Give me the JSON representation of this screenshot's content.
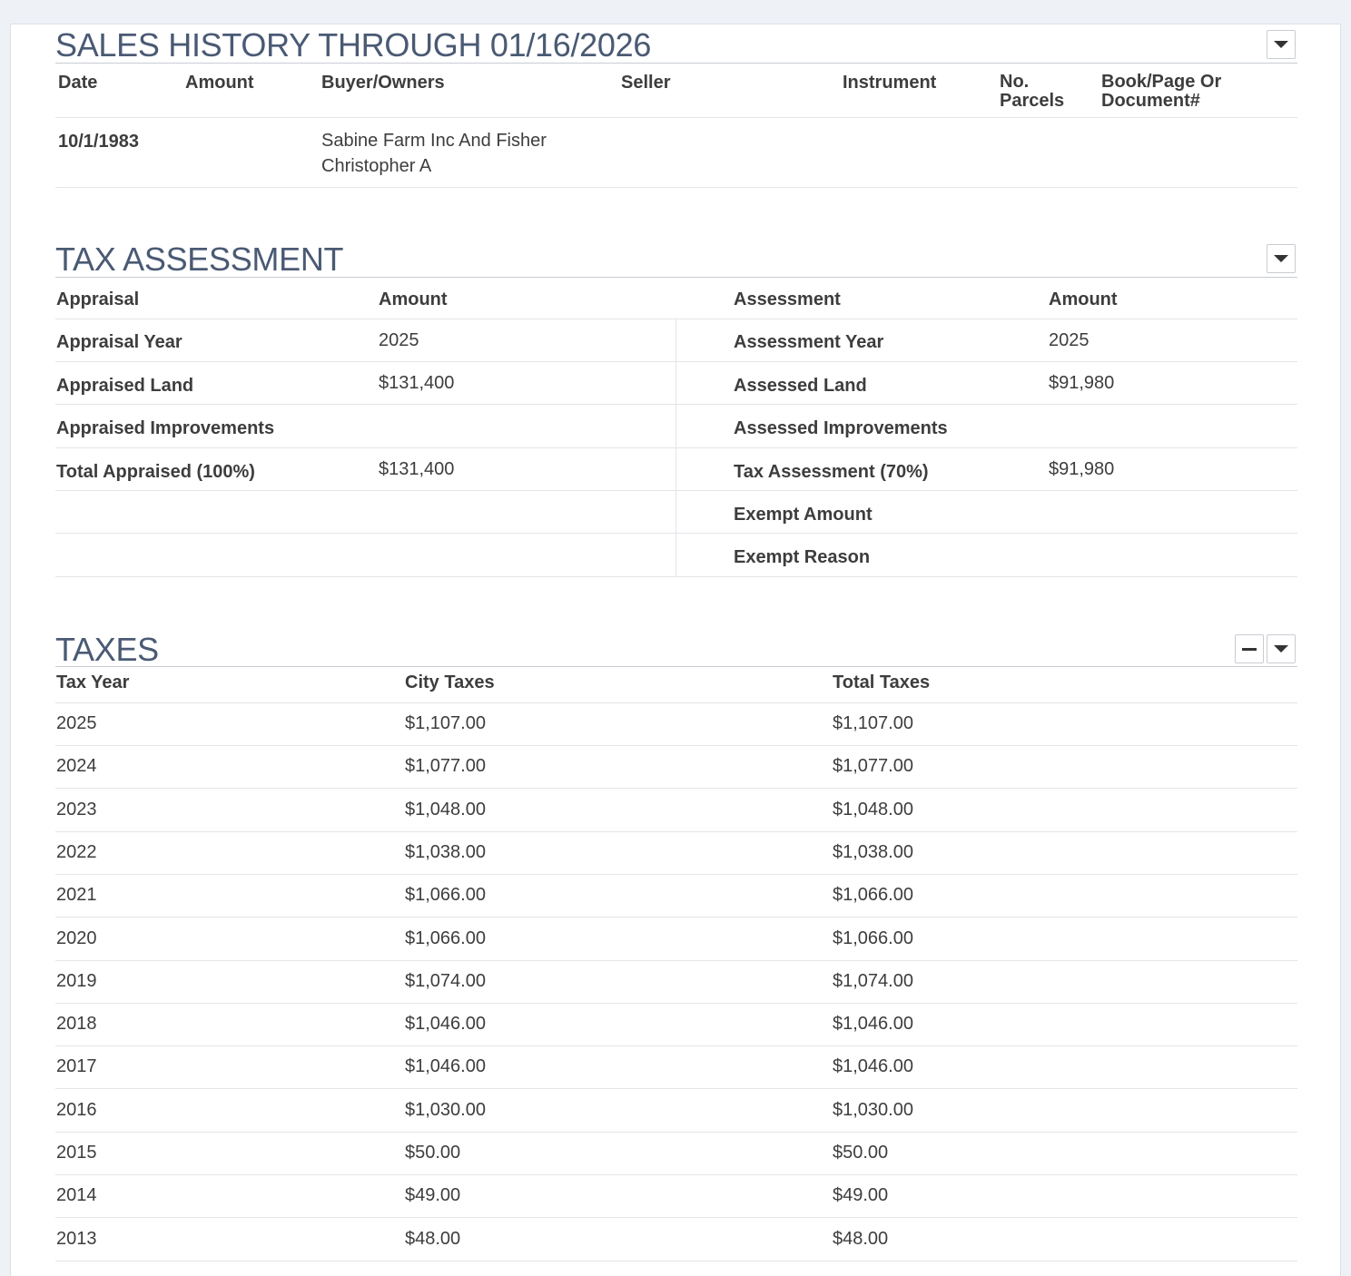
{
  "sales_history": {
    "title": "SALES HISTORY THROUGH 01/16/2026",
    "columns": [
      "Date",
      "Amount",
      "Buyer/Owners",
      "Seller",
      "Instrument",
      "No. Parcels",
      "Book/Page Or Document#"
    ],
    "rows": [
      {
        "date": "10/1/1983",
        "amount": "",
        "buyer": "Sabine Farm Inc And Fisher Christopher A",
        "seller": "",
        "instrument": "",
        "parcels": "",
        "book_page": ""
      }
    ]
  },
  "tax_assessment": {
    "title": "TAX ASSESSMENT",
    "left_headers": [
      "Appraisal",
      "Amount"
    ],
    "right_headers": [
      "Assessment",
      "Amount"
    ],
    "appraisal_rows": [
      {
        "label": "Appraisal Year",
        "value": "2025"
      },
      {
        "label": "Appraised Land",
        "value": "$131,400"
      },
      {
        "label": "Appraised Improvements",
        "value": ""
      },
      {
        "label": "Total Appraised (100%)",
        "value": "$131,400"
      }
    ],
    "assessment_rows": [
      {
        "label": "Assessment Year",
        "value": "2025"
      },
      {
        "label": "Assessed Land",
        "value": "$91,980"
      },
      {
        "label": "Assessed Improvements",
        "value": ""
      },
      {
        "label": "Tax Assessment (70%)",
        "value": "$91,980"
      },
      {
        "label": "Exempt Amount",
        "value": ""
      },
      {
        "label": "Exempt Reason",
        "value": ""
      }
    ]
  },
  "taxes": {
    "title": "TAXES",
    "columns": [
      "Tax Year",
      "City Taxes",
      "Total Taxes"
    ],
    "rows": [
      {
        "year": "2025",
        "city": "$1,107.00",
        "total": "$1,107.00"
      },
      {
        "year": "2024",
        "city": "$1,077.00",
        "total": "$1,077.00"
      },
      {
        "year": "2023",
        "city": "$1,048.00",
        "total": "$1,048.00"
      },
      {
        "year": "2022",
        "city": "$1,038.00",
        "total": "$1,038.00"
      },
      {
        "year": "2021",
        "city": "$1,066.00",
        "total": "$1,066.00"
      },
      {
        "year": "2020",
        "city": "$1,066.00",
        "total": "$1,066.00"
      },
      {
        "year": "2019",
        "city": "$1,074.00",
        "total": "$1,074.00"
      },
      {
        "year": "2018",
        "city": "$1,046.00",
        "total": "$1,046.00"
      },
      {
        "year": "2017",
        "city": "$1,046.00",
        "total": "$1,046.00"
      },
      {
        "year": "2016",
        "city": "$1,030.00",
        "total": "$1,030.00"
      },
      {
        "year": "2015",
        "city": "$50.00",
        "total": "$50.00"
      },
      {
        "year": "2014",
        "city": "$49.00",
        "total": "$49.00"
      },
      {
        "year": "2013",
        "city": "$48.00",
        "total": "$48.00"
      }
    ]
  },
  "icons": {
    "dropdown": "chevron-down-icon",
    "collapse": "minus-icon"
  }
}
